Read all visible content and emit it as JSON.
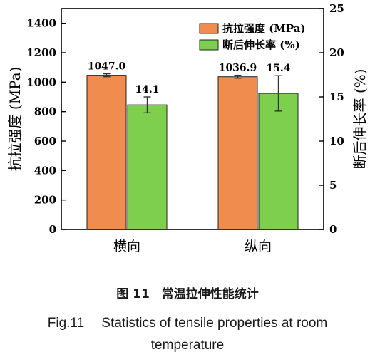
{
  "chart_data": {
    "type": "bar",
    "categories": [
      "横向",
      "纵向"
    ],
    "series": [
      {
        "name": "抗拉强度 (MPa)",
        "values": [
          1047.0,
          1036.9
        ],
        "errors": [
          10,
          10
        ],
        "labels": [
          "1047.0",
          "1036.9"
        ],
        "axis": "left",
        "color": "#f08c4e"
      },
      {
        "name": "断后伸长率 (%)",
        "values": [
          14.1,
          15.4
        ],
        "errors": [
          0.9,
          2.0
        ],
        "labels": [
          "14.1",
          "15.4"
        ],
        "axis": "right",
        "color": "#7ecf4e"
      }
    ],
    "ylabel": "抗拉强度 (MPa)",
    "ylim": [
      0,
      1500
    ],
    "yticks": [
      "0",
      "200",
      "400",
      "600",
      "800",
      "1000",
      "1200",
      "1400"
    ],
    "y2label": "断后伸长率 (%)",
    "y2lim": [
      0,
      25
    ],
    "y2ticks": [
      "0",
      "5",
      "10",
      "15",
      "20",
      "25"
    ],
    "legend_position": "top-right",
    "grid": false
  },
  "caption": {
    "cn": "图 11　常温拉伸性能统计",
    "en_line1": "Fig.11　 Statistics of tensile properties at room",
    "en_line2": "temperature"
  }
}
